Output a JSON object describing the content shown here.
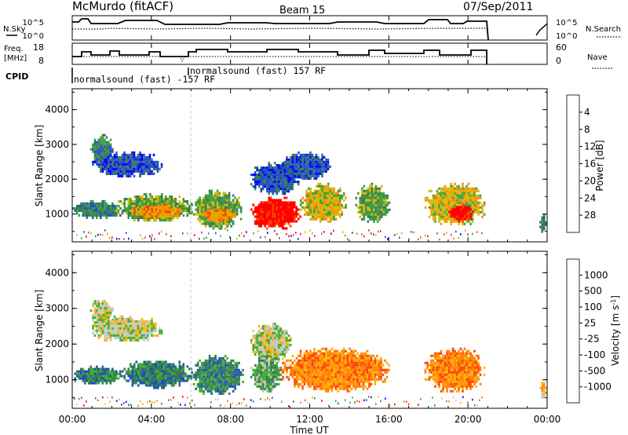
{
  "chart_data": {
    "type": "heatmap",
    "header": {
      "station": "McMurdo (fitACF)",
      "beam": "Beam 15",
      "date": "07/Sep/2011"
    },
    "strip_labels": {
      "nsky": "N.Sky",
      "nsearch": "N.Search",
      "freq": "Freq.",
      "freq_unit": "[MHz]",
      "nave": "Nave",
      "cpid": "CPID"
    },
    "noise_axis": {
      "left_ticks": [
        "10^5",
        "10^0"
      ],
      "right_ticks": [
        "10^5",
        "10^0"
      ]
    },
    "freq_axis": {
      "ticks": [
        "18",
        "8"
      ],
      "ylim": [
        8,
        18
      ]
    },
    "nave_axis": {
      "ticks": [
        "60",
        "0"
      ],
      "ylim": [
        0,
        60
      ]
    },
    "cpid_labels": [
      "normalsound (fast) -157 RF",
      "normalsound (fast) 157 RF"
    ],
    "time_axis": {
      "label": "Time UT",
      "tick_labels": [
        "00:00",
        "04:00",
        "08:00",
        "12:00",
        "16:00",
        "20:00",
        "00:00"
      ],
      "tick_hours": [
        0,
        4,
        8,
        12,
        16,
        20,
        24
      ],
      "range_hours": [
        0,
        24
      ]
    },
    "range_axis": {
      "label": "Slant Range [km]",
      "ticks": [
        1000,
        2000,
        3000,
        4000
      ],
      "tick_labels": [
        "1000",
        "2000",
        "3000",
        "4000"
      ],
      "ylim": [
        200,
        4600
      ]
    },
    "power_colorbar": {
      "label": "Power [dB]",
      "tick_labels": [
        "4",
        "8",
        "12",
        "16",
        "20",
        "24",
        "28"
      ],
      "colors": [
        "#0000ff",
        "#2050c0",
        "#3a7a5a",
        "#3ea040",
        "#d8b800",
        "#ff8c00",
        "#ff4000",
        "#ff0000"
      ]
    },
    "velocity_colorbar": {
      "label": "Velocity [m s^-1]",
      "tick_labels": [
        "1000",
        "500",
        "100",
        "25",
        "-25",
        "-100",
        "-500",
        "-1000"
      ],
      "colors": [
        "#0000ff",
        "#2050c0",
        "#3a7a5a",
        "#40b030",
        "#c8c8c0",
        "#ffb000",
        "#ff8000",
        "#ff4000",
        "#ff0000"
      ]
    },
    "power_blobs": [
      {
        "t0": 0.9,
        "t1": 2.0,
        "r0": 2500,
        "r1": 3300,
        "c": 2
      },
      {
        "t0": 1.0,
        "t1": 4.5,
        "r0": 2100,
        "r1": 2800,
        "c": 1
      },
      {
        "t0": 0.0,
        "t1": 2.5,
        "r0": 900,
        "r1": 1400,
        "c": 2
      },
      {
        "t0": 2.2,
        "t1": 6.0,
        "r0": 800,
        "r1": 1600,
        "c": 3
      },
      {
        "t0": 3.0,
        "t1": 5.5,
        "r0": 900,
        "r1": 1300,
        "c": 5
      },
      {
        "t0": 6.0,
        "t1": 8.5,
        "r0": 600,
        "r1": 1700,
        "c": 3
      },
      {
        "t0": 6.5,
        "t1": 8.2,
        "r0": 800,
        "r1": 1200,
        "c": 5
      },
      {
        "t0": 9.0,
        "t1": 11.5,
        "r0": 1600,
        "r1": 2500,
        "c": 1
      },
      {
        "t0": 9.0,
        "t1": 11.5,
        "r0": 600,
        "r1": 1500,
        "c": 7
      },
      {
        "t0": 11.5,
        "t1": 13.8,
        "r0": 800,
        "r1": 1900,
        "c": 4
      },
      {
        "t0": 10.5,
        "t1": 13.0,
        "r0": 2000,
        "r1": 2800,
        "c": 1
      },
      {
        "t0": 14.3,
        "t1": 16.0,
        "r0": 800,
        "r1": 1900,
        "c": 3
      },
      {
        "t0": 17.8,
        "t1": 20.8,
        "r0": 700,
        "r1": 1900,
        "c": 4
      },
      {
        "t0": 19.0,
        "t1": 20.2,
        "r0": 800,
        "r1": 1300,
        "c": 7
      },
      {
        "t0": 23.6,
        "t1": 23.9,
        "r0": 500,
        "r1": 1000,
        "c": 2
      }
    ],
    "velocity_blobs": [
      {
        "t0": 0.9,
        "t1": 2.0,
        "r0": 2500,
        "r1": 3300,
        "c": 4
      },
      {
        "t0": 1.0,
        "t1": 4.5,
        "r0": 2100,
        "r1": 2800,
        "c": 4
      },
      {
        "t0": 0.0,
        "t1": 2.5,
        "r0": 900,
        "r1": 1400,
        "c": 2
      },
      {
        "t0": 2.5,
        "t1": 6.0,
        "r0": 800,
        "r1": 1600,
        "c": 2
      },
      {
        "t0": 6.0,
        "t1": 8.6,
        "r0": 600,
        "r1": 1700,
        "c": 2
      },
      {
        "t0": 9.0,
        "t1": 11.0,
        "r0": 1500,
        "r1": 2600,
        "c": 4
      },
      {
        "t0": 9.0,
        "t1": 10.5,
        "r0": 700,
        "r1": 1700,
        "c": 3
      },
      {
        "t0": 10.5,
        "t1": 16.0,
        "r0": 700,
        "r1": 1900,
        "c": 6
      },
      {
        "t0": 17.8,
        "t1": 20.8,
        "r0": 700,
        "r1": 1900,
        "c": 6
      },
      {
        "t0": 23.6,
        "t1": 23.9,
        "r0": 500,
        "r1": 1000,
        "c": 5
      }
    ]
  }
}
